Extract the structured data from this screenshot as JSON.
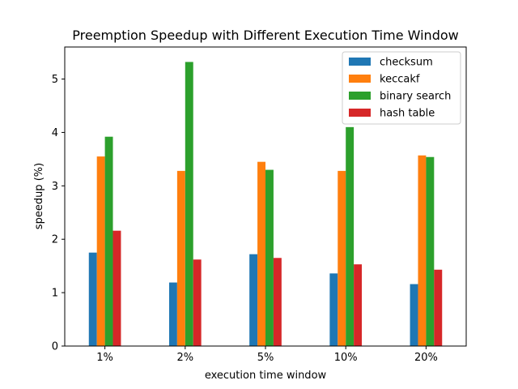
{
  "chart_data": {
    "type": "bar",
    "title": "Preemption Speedup with Different Execution Time Window",
    "xlabel": "execution time window",
    "ylabel": "speedup (%)",
    "categories": [
      "1%",
      "2%",
      "5%",
      "10%",
      "20%"
    ],
    "ylim": [
      0,
      5.6
    ],
    "yticks": [
      0,
      1,
      2,
      3,
      4,
      5
    ],
    "grid": false,
    "legend_position": "top-right",
    "series": [
      {
        "name": "checksum",
        "color": "#1f77b4",
        "values": [
          1.75,
          1.19,
          1.72,
          1.36,
          1.16
        ]
      },
      {
        "name": "keccakf",
        "color": "#ff7f0e",
        "values": [
          3.55,
          3.28,
          3.45,
          3.28,
          3.57
        ]
      },
      {
        "name": "binary search",
        "color": "#2ca02c",
        "values": [
          3.92,
          5.32,
          3.3,
          4.1,
          3.54
        ]
      },
      {
        "name": "hash table",
        "color": "#d62728",
        "values": [
          2.16,
          1.62,
          1.65,
          1.53,
          1.43
        ]
      }
    ]
  }
}
